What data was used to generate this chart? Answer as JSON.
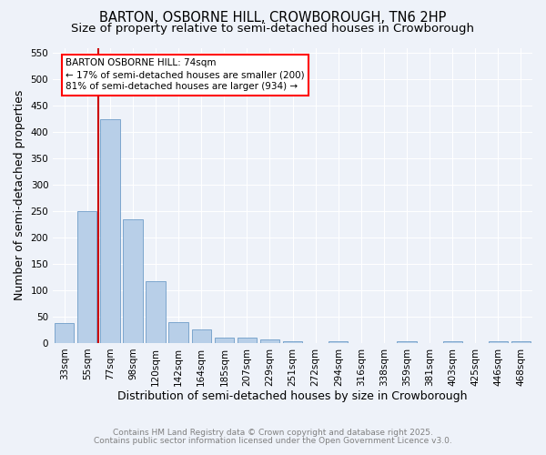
{
  "title1": "BARTON, OSBORNE HILL, CROWBOROUGH, TN6 2HP",
  "title2": "Size of property relative to semi-detached houses in Crowborough",
  "xlabel": "Distribution of semi-detached houses by size in Crowborough",
  "ylabel": "Number of semi-detached properties",
  "categories": [
    "33sqm",
    "55sqm",
    "77sqm",
    "98sqm",
    "120sqm",
    "142sqm",
    "164sqm",
    "185sqm",
    "207sqm",
    "229sqm",
    "251sqm",
    "272sqm",
    "294sqm",
    "316sqm",
    "338sqm",
    "359sqm",
    "381sqm",
    "403sqm",
    "425sqm",
    "446sqm",
    "468sqm"
  ],
  "values": [
    38,
    250,
    425,
    235,
    118,
    40,
    25,
    10,
    10,
    7,
    3,
    0,
    3,
    0,
    0,
    3,
    0,
    3,
    0,
    3,
    3
  ],
  "bar_color": "#b8cfe8",
  "bar_edge_color": "#5a8fc0",
  "red_line_index": 2,
  "annotation_title": "BARTON OSBORNE HILL: 74sqm",
  "annotation_line1": "← 17% of semi-detached houses are smaller (200)",
  "annotation_line2": "81% of semi-detached houses are larger (934) →",
  "red_line_color": "#cc0000",
  "ylim": [
    0,
    560
  ],
  "yticks": [
    0,
    50,
    100,
    150,
    200,
    250,
    300,
    350,
    400,
    450,
    500,
    550
  ],
  "footnote1": "Contains HM Land Registry data © Crown copyright and database right 2025.",
  "footnote2": "Contains public sector information licensed under the Open Government Licence v3.0.",
  "background_color": "#eef2f9",
  "grid_color": "#ffffff",
  "title_fontsize": 10.5,
  "subtitle_fontsize": 9.5,
  "axis_label_fontsize": 9,
  "tick_fontsize": 7.5,
  "footnote_fontsize": 6.5
}
